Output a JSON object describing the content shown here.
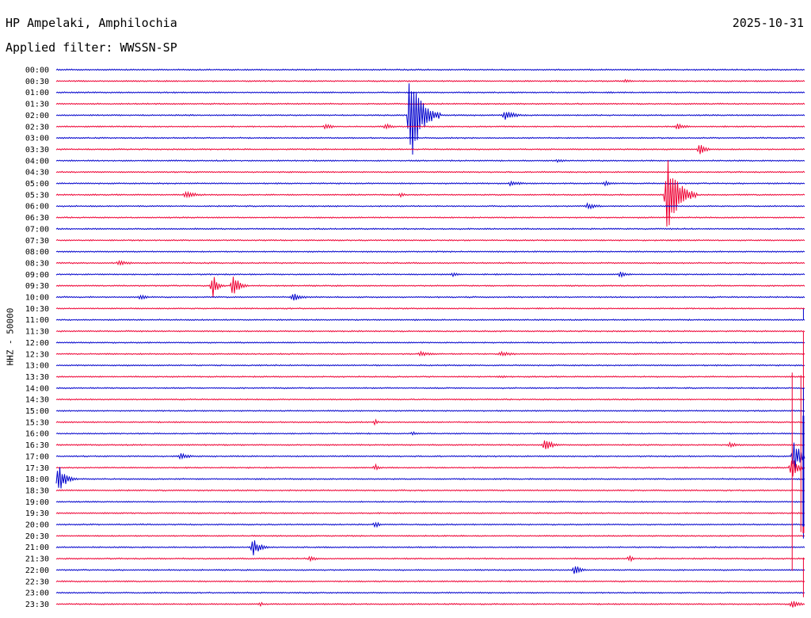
{
  "header": {
    "station": "HP Ampelaki, Amphilochia",
    "date": "2025-10-31",
    "filter": "Applied filter: WWSSN-SP",
    "channel": "HHZ - 50000"
  },
  "colors": {
    "odd": "#0000cc",
    "even": "#ee0033"
  },
  "chart_data": {
    "type": "line",
    "title": "HP Ampelaki, Amphilochia",
    "ylabel": "HHZ - 50000",
    "row_labels": [
      "00:00",
      "00:30",
      "01:00",
      "01:30",
      "02:00",
      "02:30",
      "03:00",
      "03:30",
      "04:00",
      "04:30",
      "05:00",
      "05:30",
      "06:00",
      "06:30",
      "07:00",
      "07:30",
      "08:00",
      "08:30",
      "09:00",
      "09:30",
      "10:00",
      "10:30",
      "11:00",
      "11:30",
      "12:00",
      "12:30",
      "13:00",
      "13:30",
      "14:00",
      "14:30",
      "15:00",
      "15:30",
      "16:00",
      "16:30",
      "17:00",
      "17:30",
      "18:00",
      "18:30",
      "19:00",
      "19:30",
      "20:00",
      "20:30",
      "21:00",
      "21:30",
      "22:00",
      "22:30",
      "23:00",
      "23:30"
    ],
    "trace_minutes": 30,
    "events": [
      {
        "row": 1,
        "minute": 22.8,
        "amplitude": 2,
        "duration": 1.2
      },
      {
        "row": 4,
        "minute": 14.2,
        "amplitude": 65,
        "duration": 1.2
      },
      {
        "row": 4,
        "minute": 18.0,
        "amplitude": 7,
        "duration": 1.0
      },
      {
        "row": 5,
        "minute": 10.8,
        "amplitude": 4,
        "duration": 0.8
      },
      {
        "row": 5,
        "minute": 13.2,
        "amplitude": 4,
        "duration": 0.8
      },
      {
        "row": 5,
        "minute": 24.9,
        "amplitude": 4,
        "duration": 1.0
      },
      {
        "row": 7,
        "minute": 25.8,
        "amplitude": 8,
        "duration": 0.6
      },
      {
        "row": 8,
        "minute": 20.1,
        "amplitude": 2,
        "duration": 1.2
      },
      {
        "row": 10,
        "minute": 18.2,
        "amplitude": 3,
        "duration": 1.5
      },
      {
        "row": 10,
        "minute": 22.0,
        "amplitude": 3,
        "duration": 1.0
      },
      {
        "row": 11,
        "minute": 24.5,
        "amplitude": 50,
        "duration": 1.2
      },
      {
        "row": 11,
        "minute": 5.2,
        "amplitude": 5,
        "duration": 1.2
      },
      {
        "row": 11,
        "minute": 13.8,
        "amplitude": 3,
        "duration": 0.5
      },
      {
        "row": 12,
        "minute": 21.3,
        "amplitude": 4,
        "duration": 1.2
      },
      {
        "row": 17,
        "minute": 2.5,
        "amplitude": 3,
        "duration": 1.5
      },
      {
        "row": 18,
        "minute": 15.9,
        "amplitude": 3,
        "duration": 0.6
      },
      {
        "row": 18,
        "minute": 22.6,
        "amplitude": 4,
        "duration": 0.8
      },
      {
        "row": 19,
        "minute": 6.3,
        "amplitude": 16,
        "duration": 0.5
      },
      {
        "row": 19,
        "minute": 7.1,
        "amplitude": 16,
        "duration": 0.6
      },
      {
        "row": 20,
        "minute": 3.4,
        "amplitude": 4,
        "duration": 0.6
      },
      {
        "row": 20,
        "minute": 9.5,
        "amplitude": 5,
        "duration": 1.0
      },
      {
        "row": 25,
        "minute": 14.6,
        "amplitude": 3,
        "duration": 1.2
      },
      {
        "row": 25,
        "minute": 17.8,
        "amplitude": 3,
        "duration": 1.5
      },
      {
        "row": 27,
        "minute": 17.8,
        "amplitude": 2,
        "duration": 0.8
      },
      {
        "row": 31,
        "minute": 12.8,
        "amplitude": 4,
        "duration": 0.3
      },
      {
        "row": 32,
        "minute": 14.3,
        "amplitude": 3,
        "duration": 0.5
      },
      {
        "row": 33,
        "minute": 19.6,
        "amplitude": 10,
        "duration": 0.7
      },
      {
        "row": 33,
        "minute": 27.0,
        "amplitude": 3,
        "duration": 1.2
      },
      {
        "row": 34,
        "minute": 5.0,
        "amplitude": 5,
        "duration": 0.8
      },
      {
        "row": 34,
        "minute": 29.6,
        "amplitude": 22,
        "duration": 0.6
      },
      {
        "row": 35,
        "minute": 12.8,
        "amplitude": 4,
        "duration": 0.5
      },
      {
        "row": 35,
        "minute": 29.5,
        "amplitude": 14,
        "duration": 0.6
      },
      {
        "row": 36,
        "minute": 0.1,
        "amplitude": 18,
        "duration": 0.8
      },
      {
        "row": 40,
        "minute": 12.8,
        "amplitude": 4,
        "duration": 0.5
      },
      {
        "row": 42,
        "minute": 7.9,
        "amplitude": 11,
        "duration": 0.8
      },
      {
        "row": 43,
        "minute": 10.2,
        "amplitude": 4,
        "duration": 0.6
      },
      {
        "row": 43,
        "minute": 23.0,
        "amplitude": 5,
        "duration": 0.3
      },
      {
        "row": 44,
        "minute": 20.8,
        "amplitude": 8,
        "duration": 0.6
      },
      {
        "row": 47,
        "minute": 8.2,
        "amplitude": 3,
        "duration": 0.3
      },
      {
        "row": 47,
        "minute": 29.5,
        "amplitude": 5,
        "duration": 0.8
      }
    ],
    "spikes": [
      {
        "row": 22,
        "minute": 29.95,
        "amplitude": 3,
        "up": 14,
        "down": 0
      },
      {
        "row": 25,
        "minute": 29.95,
        "amplitude": 3,
        "up": 28,
        "down": 210
      },
      {
        "row": 28,
        "minute": 29.95,
        "amplitude": 3,
        "up": 0,
        "down": 190
      },
      {
        "row": 31,
        "minute": 29.95,
        "amplitude": 5,
        "up": 0,
        "down": 140
      },
      {
        "row": 33,
        "minute": 29.85,
        "amplitude": 3,
        "up": 88,
        "down": 110
      },
      {
        "row": 35,
        "minute": 29.5,
        "amplitude": 3,
        "up": 120,
        "down": 130
      },
      {
        "row": 36,
        "minute": 29.95,
        "amplitude": 4,
        "up": 80,
        "down": 60
      },
      {
        "row": 38,
        "minute": 29.95,
        "amplitude": 3,
        "up": 0,
        "down": 20
      },
      {
        "row": 45,
        "minute": 29.95,
        "amplitude": 3,
        "up": 30,
        "down": 20
      }
    ]
  }
}
